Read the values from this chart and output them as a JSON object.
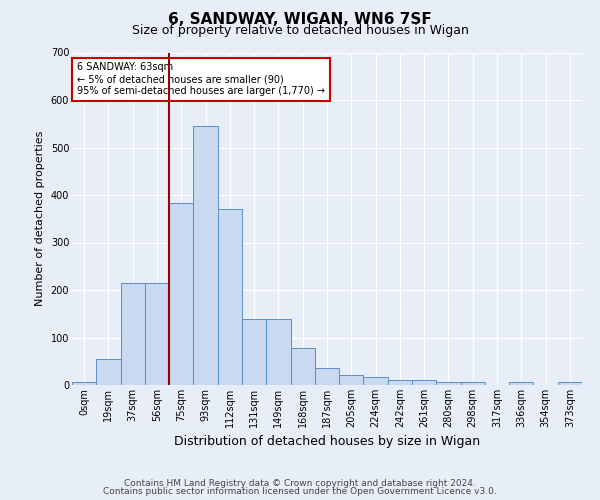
{
  "title": "6, SANDWAY, WIGAN, WN6 7SF",
  "subtitle": "Size of property relative to detached houses in Wigan",
  "xlabel": "Distribution of detached houses by size in Wigan",
  "ylabel": "Number of detached properties",
  "bar_labels": [
    "0sqm",
    "19sqm",
    "37sqm",
    "56sqm",
    "75sqm",
    "93sqm",
    "112sqm",
    "131sqm",
    "149sqm",
    "168sqm",
    "187sqm",
    "205sqm",
    "224sqm",
    "242sqm",
    "261sqm",
    "280sqm",
    "298sqm",
    "317sqm",
    "336sqm",
    "354sqm",
    "373sqm"
  ],
  "bar_values": [
    7,
    55,
    215,
    215,
    383,
    545,
    370,
    140,
    140,
    78,
    35,
    22,
    17,
    11,
    11,
    7,
    7,
    0,
    7,
    0,
    7
  ],
  "bar_color": "#c9d9f0",
  "bar_edge_color": "#5b8fc9",
  "vline_x": 3.5,
  "vline_color": "#990000",
  "annotation_text": "6 SANDWAY: 63sqm\n← 5% of detached houses are smaller (90)\n95% of semi-detached houses are larger (1,770) →",
  "annotation_box_color": "#ffffff",
  "annotation_box_edge": "#cc0000",
  "ylim": [
    0,
    700
  ],
  "yticks": [
    0,
    100,
    200,
    300,
    400,
    500,
    600,
    700
  ],
  "bg_color": "#e8eef8",
  "plot_bg_color": "#e8eef8",
  "footnote1": "Contains HM Land Registry data © Crown copyright and database right 2024.",
  "footnote2": "Contains public sector information licensed under the Open Government Licence v3.0.",
  "title_fontsize": 11,
  "subtitle_fontsize": 9,
  "xlabel_fontsize": 9,
  "ylabel_fontsize": 8,
  "tick_fontsize": 7,
  "footnote_fontsize": 6.5
}
